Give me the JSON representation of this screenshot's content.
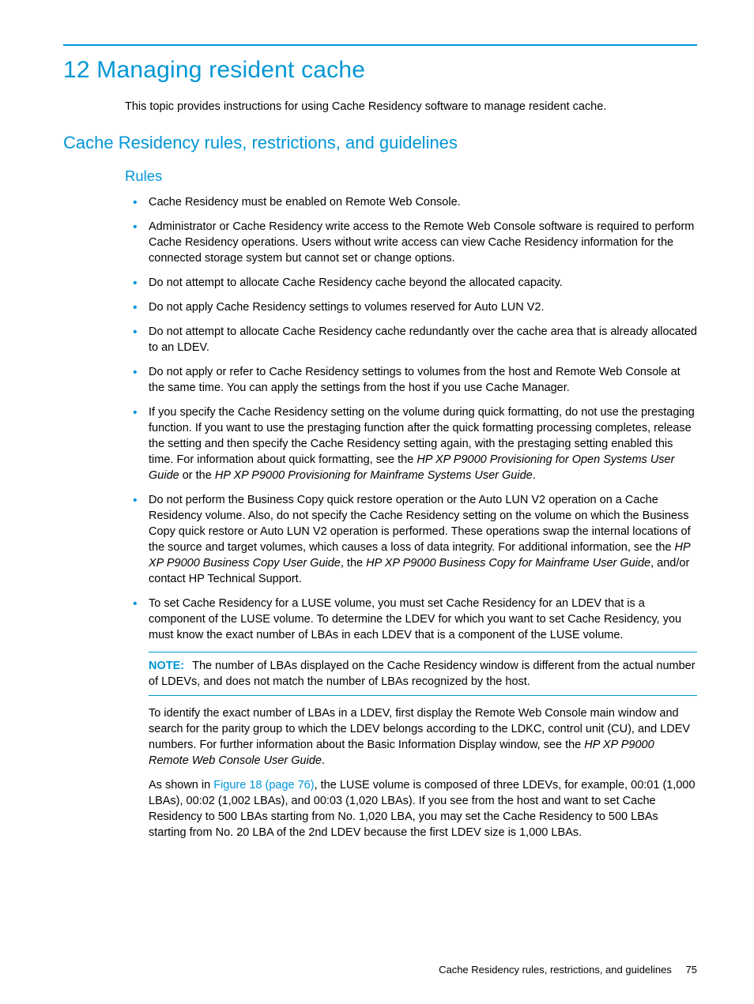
{
  "colors": {
    "accent": "#0096d6",
    "text": "#000000",
    "background": "#ffffff"
  },
  "typography": {
    "body_fontsize_pt": 11,
    "h1_fontsize_pt": 22,
    "h2_fontsize_pt": 16,
    "h3_fontsize_pt": 14,
    "font_family": "Arial"
  },
  "chapter": {
    "title": "12 Managing resident cache",
    "intro": "This topic provides instructions for using Cache Residency software to manage resident cache."
  },
  "section": {
    "title": "Cache Residency rules, restrictions, and guidelines",
    "subsection": {
      "title": "Rules",
      "bullets": {
        "b1": "Cache Residency must be enabled on Remote Web Console.",
        "b2": "Administrator or Cache Residency write access to the Remote Web Console software is required to perform Cache Residency operations. Users without write access can view Cache Residency information for the connected storage system but cannot set or change options.",
        "b3": "Do not attempt to allocate Cache Residency cache beyond the allocated capacity.",
        "b4": "Do not apply Cache Residency settings to volumes reserved for Auto LUN V2.",
        "b5": "Do not attempt to allocate Cache Residency cache redundantly over the cache area that is already allocated to an LDEV.",
        "b6": "Do not apply or refer to Cache Residency settings to volumes from the host and Remote Web Console at the same time. You can apply the settings from the host if you use Cache Manager.",
        "b7_a": "If you specify the Cache Residency setting on the volume during quick formatting, do not use the prestaging function. If you want to use the prestaging function after the quick formatting processing completes, release the setting and then specify the Cache Residency setting again, with the prestaging setting enabled this time. For information about quick formatting, see the ",
        "b7_ital1": "HP XP P9000 Provisioning for Open Systems User Guide",
        "b7_b": " or the ",
        "b7_ital2": "HP XP P9000 Provisioning for Mainframe Systems User Guide",
        "b7_c": ".",
        "b8_a": "Do not perform the Business Copy quick restore operation or the Auto LUN V2 operation on a Cache Residency volume. Also, do not specify the Cache Residency setting on the volume on which the Business Copy quick restore or Auto LUN V2 operation is performed. These operations swap the internal locations of the source and target volumes, which causes a loss of data integrity. For additional information, see the ",
        "b8_ital1": "HP XP P9000 Business Copy User Guide",
        "b8_b": ", the ",
        "b8_ital2": "HP XP P9000 Business Copy for Mainframe User Guide",
        "b8_c": ", and/or contact HP Technical Support.",
        "b9": "To set Cache Residency for a LUSE volume, you must set Cache Residency for an LDEV that is a component of the LUSE volume. To determine the LDEV for which you want to set Cache Residency, you must know the exact number of LBAs in each LDEV that is a component of the LUSE volume."
      },
      "note": {
        "label": "NOTE:",
        "text": "The number of LBAs displayed on the Cache Residency window is different from the actual number of LDEVs, and does not match the number of LBAs recognized by the host."
      },
      "para1_a": "To identify the exact number of LBAs in a LDEV, first display the Remote Web Console main window and search for the parity group to which the LDEV belongs according to the LDKC, control unit (CU), and LDEV numbers. For further information about the Basic Information Display window, see the ",
      "para1_ital": "HP XP P9000 Remote Web Console User Guide",
      "para1_b": ".",
      "para2_a": "As shown in ",
      "para2_link": "Figure 18 (page 76)",
      "para2_b": ", the LUSE volume is composed of three LDEVs, for example, 00:01 (1,000 LBAs), 00:02 (1,002 LBAs), and 00:03 (1,020 LBAs). If you see from the host and want to set Cache Residency to 500 LBAs starting from No. 1,020 LBA, you may set the Cache Residency to 500 LBAs starting from No. 20 LBA of the 2nd LDEV because the first LDEV size is 1,000 LBAs."
    }
  },
  "footer": {
    "text": "Cache Residency rules, restrictions, and guidelines",
    "page": "75"
  }
}
